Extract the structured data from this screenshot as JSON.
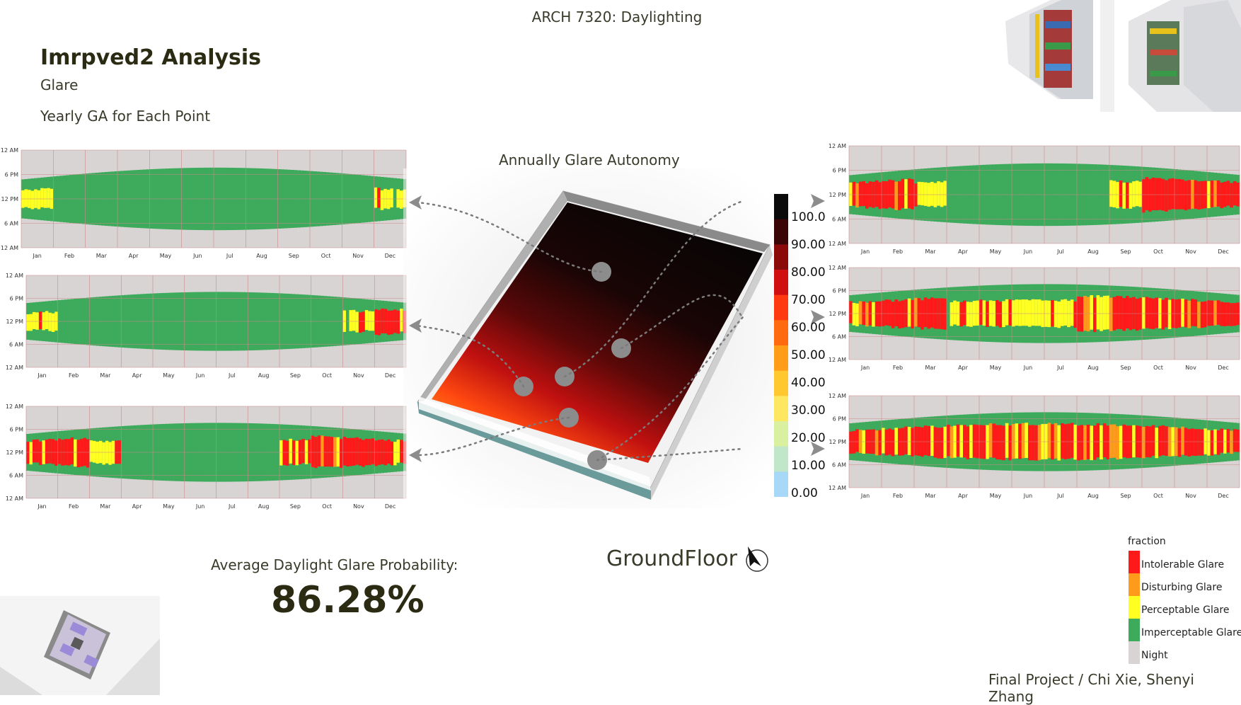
{
  "header": {
    "course_title": "ARCH 7320: Daylighting"
  },
  "page": {
    "title": "Imrpved2 Analysis",
    "subtitle": "Glare",
    "section_label": "Yearly GA for Each Point"
  },
  "map": {
    "title": "Annually Glare Autonomy",
    "scale_labels": [
      "100.0",
      "90.00",
      "80.00",
      "70.00",
      "60.00",
      "50.00",
      "40.00",
      "30.00",
      "20.00",
      "10.00",
      "0.00"
    ],
    "scale_colors": [
      "#0a0a0a",
      "#3a0505",
      "#8a0a0a",
      "#d01010",
      "#ff3a10",
      "#ff6a10",
      "#ff9c18",
      "#ffc830",
      "#ffe860",
      "#d8f0a0",
      "#c0e8c8",
      "#a8d8f8"
    ]
  },
  "stats": {
    "avg_label": "Average Daylight Glare Probability:",
    "avg_value": "86.28%"
  },
  "floor_label": "GroundFloor",
  "credits": "Final Project / Chi Xie, Shenyi Zhang",
  "legend": {
    "title": "fraction",
    "items": [
      {
        "label": "Intolerable Glare",
        "color": "#ff1a1a"
      },
      {
        "label": "Disturbing Glare",
        "color": "#ff9a1a"
      },
      {
        "label": "Perceptable Glare",
        "color": "#ffff22"
      },
      {
        "label": "Imperceptable Glare",
        "color": "#3daa5c"
      },
      {
        "label": "Night",
        "color": "#d8d4d4"
      }
    ]
  },
  "chart_data": [
    {
      "type": "heatmap",
      "title": "",
      "months": [
        "Jan",
        "Feb",
        "Mar",
        "Apr",
        "May",
        "Jun",
        "Jul",
        "Aug",
        "Sep",
        "Oct",
        "Nov",
        "Dec"
      ],
      "y_ticks": [
        "12 AM",
        "6 PM",
        "12 PM",
        "6 AM",
        "12 AM"
      ],
      "categories": [
        "Intolerable Glare",
        "Disturbing Glare",
        "Perceptable Glare",
        "Imperceptable Glare",
        "Night"
      ],
      "dominant_by_month": [
        "Perceptable Glare",
        "Imperceptable Glare",
        "Imperceptable Glare",
        "Imperceptable Glare",
        "Imperceptable Glare",
        "Imperceptable Glare",
        "Imperceptable Glare",
        "Imperceptable Glare",
        "Imperceptable Glare",
        "Imperceptable Glare",
        "Imperceptable Glare",
        "Perceptable Glare"
      ]
    },
    {
      "type": "heatmap",
      "title": "",
      "months": [
        "Jan",
        "Feb",
        "Mar",
        "Apr",
        "May",
        "Jun",
        "Jul",
        "Aug",
        "Sep",
        "Oct",
        "Nov",
        "Dec"
      ],
      "y_ticks": [
        "12 AM",
        "6 PM",
        "12 PM",
        "6 AM",
        "12 AM"
      ],
      "categories": [
        "Intolerable Glare",
        "Disturbing Glare",
        "Perceptable Glare",
        "Imperceptable Glare",
        "Night"
      ],
      "dominant_by_month": [
        "Perceptable Glare",
        "Imperceptable Glare",
        "Imperceptable Glare",
        "Imperceptable Glare",
        "Imperceptable Glare",
        "Imperceptable Glare",
        "Imperceptable Glare",
        "Imperceptable Glare",
        "Imperceptable Glare",
        "Imperceptable Glare",
        "Perceptable Glare",
        "Intolerable Glare"
      ]
    },
    {
      "type": "heatmap",
      "title": "",
      "months": [
        "Jan",
        "Feb",
        "Mar",
        "Apr",
        "May",
        "Jun",
        "Jul",
        "Aug",
        "Sep",
        "Oct",
        "Nov",
        "Dec"
      ],
      "y_ticks": [
        "12 AM",
        "6 PM",
        "12 PM",
        "6 AM",
        "12 AM"
      ],
      "categories": [
        "Intolerable Glare",
        "Disturbing Glare",
        "Perceptable Glare",
        "Imperceptable Glare",
        "Night"
      ],
      "dominant_by_month": [
        "Intolerable Glare",
        "Intolerable Glare",
        "Perceptable Glare",
        "Imperceptable Glare",
        "Imperceptable Glare",
        "Imperceptable Glare",
        "Imperceptable Glare",
        "Imperceptable Glare",
        "Perceptable Glare",
        "Intolerable Glare",
        "Intolerable Glare",
        "Intolerable Glare"
      ]
    },
    {
      "type": "heatmap",
      "title": "",
      "months": [
        "Jan",
        "Feb",
        "Mar",
        "Apr",
        "May",
        "Jun",
        "Jul",
        "Aug",
        "Sep",
        "Oct",
        "Nov",
        "Dec"
      ],
      "y_ticks": [
        "12 AM",
        "6 PM",
        "12 PM",
        "6 AM",
        "12 AM"
      ],
      "categories": [
        "Intolerable Glare",
        "Disturbing Glare",
        "Perceptable Glare",
        "Imperceptable Glare",
        "Night"
      ],
      "dominant_by_month": [
        "Intolerable Glare",
        "Intolerable Glare",
        "Perceptable Glare",
        "Imperceptable Glare",
        "Imperceptable Glare",
        "Imperceptable Glare",
        "Imperceptable Glare",
        "Imperceptable Glare",
        "Perceptable Glare",
        "Intolerable Glare",
        "Intolerable Glare",
        "Intolerable Glare"
      ]
    },
    {
      "type": "heatmap",
      "title": "",
      "months": [
        "Jan",
        "Feb",
        "Mar",
        "Apr",
        "May",
        "Jun",
        "Jul",
        "Aug",
        "Sep",
        "Oct",
        "Nov",
        "Dec"
      ],
      "y_ticks": [
        "12 AM",
        "6 PM",
        "12 PM",
        "6 AM",
        "12 AM"
      ],
      "categories": [
        "Intolerable Glare",
        "Disturbing Glare",
        "Perceptable Glare",
        "Imperceptable Glare",
        "Night"
      ],
      "dominant_by_month": [
        "Intolerable Glare",
        "Intolerable Glare",
        "Intolerable Glare",
        "Perceptable Glare",
        "Perceptable Glare",
        "Perceptable Glare",
        "Perceptable Glare",
        "Intolerable Glare",
        "Intolerable Glare",
        "Intolerable Glare",
        "Intolerable Glare",
        "Intolerable Glare"
      ]
    },
    {
      "type": "heatmap",
      "title": "",
      "months": [
        "Jan",
        "Feb",
        "Mar",
        "Apr",
        "May",
        "Jun",
        "Jul",
        "Aug",
        "Sep",
        "Oct",
        "Nov",
        "Dec"
      ],
      "y_ticks": [
        "12 AM",
        "6 PM",
        "12 PM",
        "6 AM",
        "12 AM"
      ],
      "categories": [
        "Intolerable Glare",
        "Disturbing Glare",
        "Perceptable Glare",
        "Imperceptable Glare",
        "Night"
      ],
      "dominant_by_month": [
        "Intolerable Glare",
        "Intolerable Glare",
        "Intolerable Glare",
        "Intolerable Glare",
        "Intolerable Glare",
        "Intolerable Glare",
        "Intolerable Glare",
        "Intolerable Glare",
        "Intolerable Glare",
        "Intolerable Glare",
        "Intolerable Glare",
        "Intolerable Glare"
      ]
    }
  ]
}
